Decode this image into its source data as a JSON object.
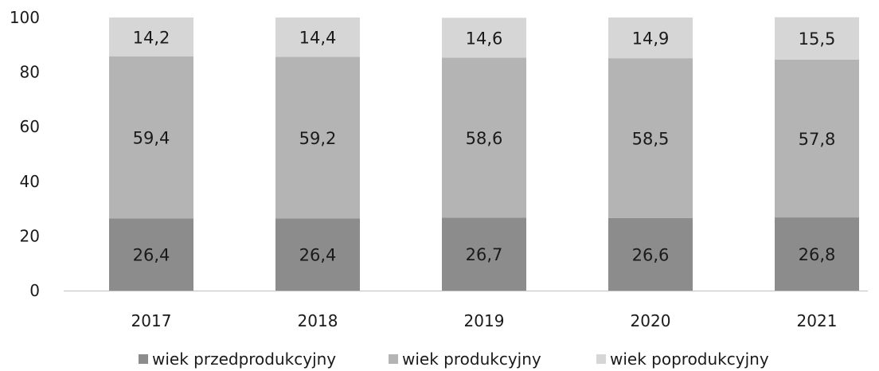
{
  "chart_data": {
    "type": "stacked-bar",
    "categories": [
      "2017",
      "2018",
      "2019",
      "2020",
      "2021"
    ],
    "series": [
      {
        "name": "wiek przedprodukcyjny",
        "values": [
          26.4,
          26.4,
          26.7,
          26.6,
          26.8
        ],
        "labels": [
          "26,4",
          "26,4",
          "26,7",
          "26,6",
          "26,8"
        ],
        "color": "#8c8c8c"
      },
      {
        "name": "wiek produkcyjny",
        "values": [
          59.4,
          59.2,
          58.6,
          58.5,
          57.8
        ],
        "labels": [
          "59,4",
          "59,2",
          "58,6",
          "58,5",
          "57,8"
        ],
        "color": "#b4b4b4"
      },
      {
        "name": "wiek poprodukcyjny",
        "values": [
          14.2,
          14.4,
          14.6,
          14.9,
          15.5
        ],
        "labels": [
          "14,2",
          "14,4",
          "14,6",
          "14,9",
          "15,5"
        ],
        "color": "#d6d6d6"
      }
    ],
    "yticks": [
      "0",
      "20",
      "40",
      "60",
      "80",
      "100"
    ],
    "ylim": [
      0,
      100
    ],
    "grid": false,
    "legend": "bottom"
  }
}
